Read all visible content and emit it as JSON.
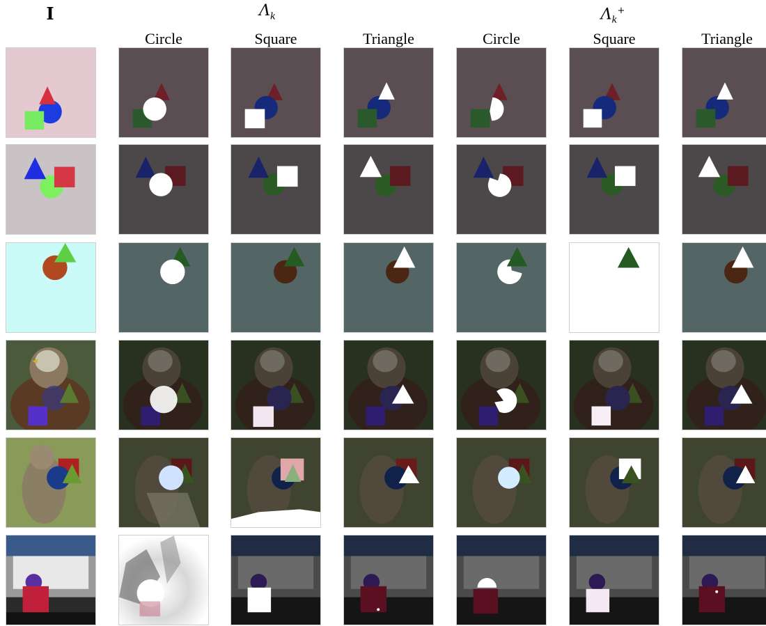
{
  "header": {
    "input_label": "I",
    "group1_label": "Λ",
    "group1_sub": "k",
    "group2_label": "Λ",
    "group2_sub": "k",
    "group2_sup": "+",
    "columns": [
      "Circle",
      "Square",
      "Triangle",
      "Circle",
      "Square",
      "Triangle"
    ]
  },
  "colors": {
    "row1_bg": "#e5c9d1",
    "row2_bg": "#c9c3c6",
    "row3_bg": "#cbfbf8",
    "dark_bg1": "#5b4e53",
    "dark_bg2": "#4c484a",
    "dark_bg3": "#536565",
    "mask": "#ffffff"
  }
}
